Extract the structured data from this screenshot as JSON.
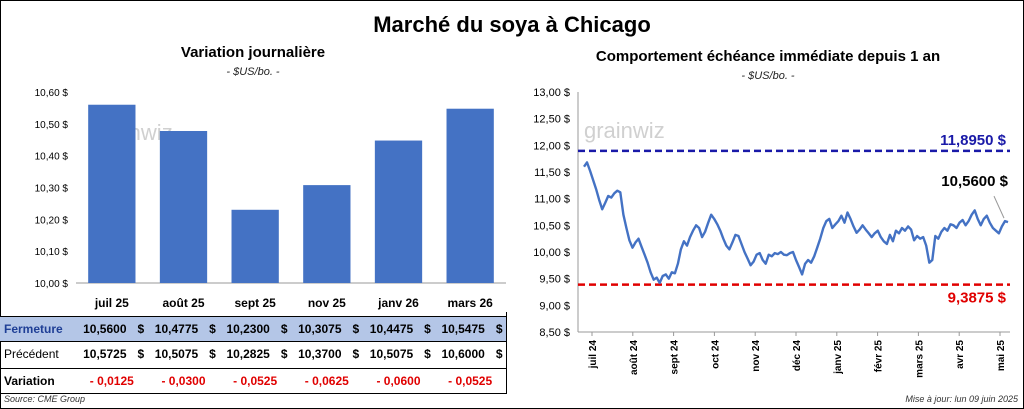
{
  "title": "Marché du soya à Chicago",
  "left_chart": {
    "title": "Variation journalière",
    "units": "- $US/bo. -"
  },
  "right_chart": {
    "title": "Comportement échéance immédiate depuis 1 an",
    "units": "- $US/bo. -"
  },
  "watermark": "grainwiz",
  "chart_data": [
    {
      "type": "bar",
      "title": "Variation journalière",
      "categories": [
        "juil 25",
        "août 25",
        "sept 25",
        "nov 25",
        "janv 26",
        "mars 26"
      ],
      "values": [
        10.56,
        10.4775,
        10.23,
        10.3075,
        10.4475,
        10.5475
      ],
      "ylim": [
        10.0,
        10.6
      ],
      "yticks": [
        "10,00 $",
        "10,10 $",
        "10,20 $",
        "10,30 $",
        "10,40 $",
        "10,50 $",
        "10,60 $"
      ],
      "color": "#4472c4",
      "grid": false
    },
    {
      "type": "line",
      "title": "Comportement échéance immédiate depuis 1 an",
      "ylim": [
        8.5,
        13.0
      ],
      "yticks": [
        "8,50 $",
        "9,00 $",
        "9,50 $",
        "10,00 $",
        "10,50 $",
        "11,00 $",
        "11,50 $",
        "12,00 $",
        "12,50 $",
        "13,00 $"
      ],
      "xticks": [
        "juil 24",
        "août 24",
        "sept 24",
        "oct 24",
        "nov 24",
        "déc 24",
        "janv 25",
        "févr 25",
        "mars 25",
        "avr 25",
        "mai 25"
      ],
      "series": [
        {
          "color": "#4472c4",
          "values": [
            11.6,
            11.68,
            11.52,
            11.35,
            11.18,
            10.98,
            10.8,
            10.92,
            11.05,
            11.02,
            11.1,
            11.15,
            11.12,
            10.7,
            10.45,
            10.22,
            10.08,
            10.18,
            10.25,
            10.1,
            9.95,
            9.8,
            9.62,
            9.48,
            9.52,
            9.42,
            9.55,
            9.58,
            9.5,
            9.62,
            9.6,
            9.78,
            10.05,
            10.2,
            10.12,
            10.28,
            10.4,
            10.5,
            10.45,
            10.28,
            10.38,
            10.55,
            10.7,
            10.62,
            10.52,
            10.4,
            10.25,
            10.12,
            10.05,
            10.18,
            10.32,
            10.3,
            10.15,
            10.0,
            9.88,
            9.75,
            9.82,
            9.95,
            9.98,
            9.85,
            9.78,
            9.95,
            9.92,
            9.98,
            9.96,
            10.0,
            9.95,
            9.94,
            9.98,
            10.0,
            9.85,
            9.72,
            9.58,
            9.78,
            9.85,
            9.8,
            9.92,
            10.08,
            10.25,
            10.45,
            10.58,
            10.62,
            10.45,
            10.52,
            10.58,
            10.68,
            10.55,
            10.74,
            10.62,
            10.48,
            10.36,
            10.42,
            10.5,
            10.42,
            10.35,
            10.28,
            10.35,
            10.4,
            10.28,
            10.2,
            10.15,
            10.32,
            10.2,
            10.4,
            10.35,
            10.45,
            10.4,
            10.48,
            10.42,
            10.22,
            10.3,
            10.25,
            10.28,
            10.12,
            9.8,
            9.85,
            10.3,
            10.25,
            10.38,
            10.45,
            10.4,
            10.52,
            10.5,
            10.45,
            10.55,
            10.6,
            10.5,
            10.58,
            10.7,
            10.78,
            10.62,
            10.5,
            10.62,
            10.68,
            10.55,
            10.45,
            10.4,
            10.35,
            10.48,
            10.58,
            10.56
          ]
        }
      ],
      "reference_lines": [
        {
          "value": 11.895,
          "label": "11,8950 $",
          "color": "#1a1aa8"
        },
        {
          "value": 9.3875,
          "label": "9,3875 $",
          "color": "#e00000"
        }
      ],
      "current_label": "10,5600 $"
    }
  ],
  "table": {
    "rows": [
      {
        "label": "Fermeture",
        "values": [
          "10,5600",
          "10,4775",
          "10,2300",
          "10,3075",
          "10,4475",
          "10,5475"
        ],
        "unit": "$"
      },
      {
        "label": "Précédent",
        "values": [
          "10,5725",
          "10,5075",
          "10,2825",
          "10,3700",
          "10,5075",
          "10,6000"
        ],
        "unit": "$"
      },
      {
        "label": "Variation",
        "values": [
          "- 0,0125",
          "- 0,0300",
          "- 0,0525",
          "- 0,0625",
          "- 0,0600",
          "- 0,0525"
        ]
      }
    ]
  },
  "footer": {
    "source": "Source: CME Group",
    "updated": "Mise à jour: lun 09 juin 2025"
  }
}
